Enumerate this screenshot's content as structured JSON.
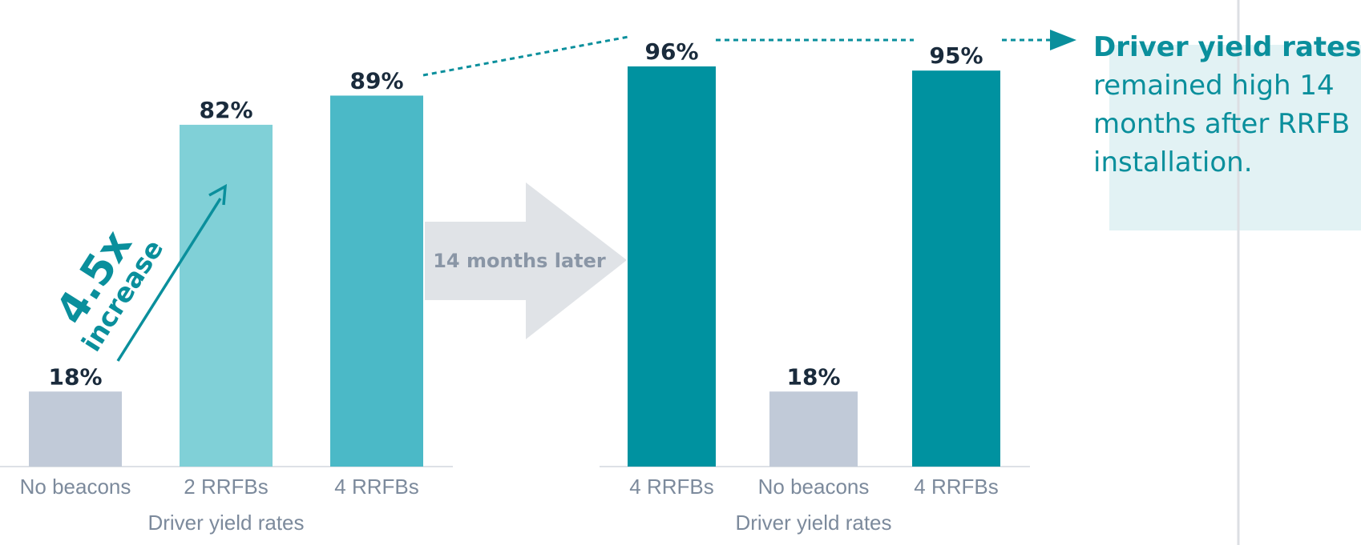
{
  "chart_data": [
    {
      "type": "bar",
      "xlabel": "Driver yield rates",
      "categories": [
        "No beacons",
        "2 RRFBs",
        "4 RRFBs"
      ],
      "values": [
        18,
        82,
        89
      ],
      "value_labels": [
        "18%",
        "82%",
        "89%"
      ],
      "colors": [
        "#c1cad8",
        "#80d0d7",
        "#4bb9c7"
      ],
      "ylim": [
        0,
        100
      ],
      "grid": false,
      "annotation": {
        "value": "4.5x",
        "text": "increase"
      }
    },
    {
      "type": "bar",
      "xlabel": "Driver yield rates",
      "categories": [
        "4 RRFBs",
        "No beacons",
        "4 RRFBs"
      ],
      "values": [
        96,
        18,
        95
      ],
      "value_labels": [
        "96%",
        "18%",
        "95%"
      ],
      "colors": [
        "#0092a0",
        "#c1cad8",
        "#0092a0"
      ],
      "ylim": [
        0,
        100
      ],
      "grid": false
    }
  ],
  "transition_label": "14 months later",
  "callout": {
    "bold": "Driver yield rates",
    "lines": [
      "remained high 14",
      "months after RRFB",
      "installation."
    ]
  },
  "colors": {
    "accent": "#0a8f9c",
    "label_dark": "#1a2b3c",
    "axis_text": "#7c8a9c",
    "arrow_fill": "#e0e3e7",
    "callout_bg": "#e2f2f4"
  }
}
